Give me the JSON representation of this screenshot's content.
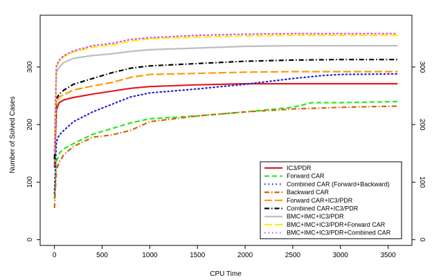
{
  "chart_data": {
    "type": "line",
    "title": "",
    "xlabel": "CPU Time",
    "ylabel": "Number of Solved Cases",
    "xlim": [
      -150,
      3750
    ],
    "ylim": [
      -10,
      390
    ],
    "xticks": [
      0,
      500,
      1000,
      1500,
      2000,
      2500,
      3000,
      3500
    ],
    "yticks": [
      0,
      100,
      200,
      300
    ],
    "right_axis": true,
    "grid": false,
    "legend_position": "bottom-right",
    "series": [
      {
        "name": "IC3/PDR",
        "color": "#e41a1c",
        "style": "solid",
        "x": [
          0,
          20,
          50,
          100,
          200,
          400,
          600,
          800,
          1000,
          1500,
          2000,
          2500,
          3000,
          3600
        ],
        "y": [
          125,
          225,
          238,
          243,
          247,
          253,
          258,
          263,
          266,
          269,
          271,
          271,
          271,
          271
        ]
      },
      {
        "name": "Forward CAR",
        "color": "#1aee1a",
        "style": "dashed",
        "x": [
          0,
          20,
          50,
          100,
          200,
          400,
          600,
          800,
          1000,
          1500,
          2000,
          2500,
          2700,
          3000,
          3600
        ],
        "y": [
          70,
          135,
          150,
          158,
          167,
          183,
          193,
          203,
          210,
          215,
          222,
          230,
          238,
          238,
          240
        ]
      },
      {
        "name": "Combined CAR (Forward+Backward)",
        "color": "#1f1fd6",
        "style": "dotted",
        "x": [
          0,
          20,
          50,
          100,
          200,
          400,
          600,
          800,
          1000,
          1500,
          2000,
          2500,
          2800,
          3000,
          3600
        ],
        "y": [
          80,
          170,
          182,
          190,
          205,
          222,
          235,
          248,
          255,
          262,
          270,
          280,
          285,
          287,
          288
        ]
      },
      {
        "name": "Backward CAR",
        "color": "#d95f02",
        "style": "dashdot",
        "x": [
          0,
          20,
          50,
          100,
          200,
          400,
          600,
          800,
          1000,
          1500,
          2000,
          2500,
          3000,
          3600
        ],
        "y": [
          55,
          120,
          135,
          148,
          162,
          178,
          182,
          190,
          205,
          215,
          222,
          227,
          230,
          232
        ]
      },
      {
        "name": "Forward CAR+IC3/PDR",
        "color": "#ff9900",
        "style": "longdash",
        "x": [
          0,
          20,
          50,
          100,
          200,
          400,
          600,
          800,
          1000,
          1500,
          2000,
          2500,
          3000,
          3600
        ],
        "y": [
          135,
          235,
          248,
          252,
          260,
          267,
          273,
          282,
          287,
          289,
          291,
          292,
          292,
          292
        ]
      },
      {
        "name": "Combined CAR+IC3/PDR",
        "color": "#000000",
        "style": "dashdot",
        "x": [
          0,
          20,
          50,
          100,
          200,
          400,
          600,
          800,
          1000,
          1500,
          2000,
          2500,
          3000,
          3600
        ],
        "y": [
          140,
          245,
          253,
          260,
          270,
          280,
          290,
          298,
          302,
          306,
          310,
          312,
          313,
          313
        ]
      },
      {
        "name": "BMC+IMC+IC3/PDR",
        "color": "#bdbdbd",
        "style": "solid",
        "x": [
          0,
          20,
          50,
          100,
          200,
          400,
          600,
          800,
          1000,
          1500,
          2000,
          2500,
          3000,
          3600
        ],
        "y": [
          150,
          290,
          300,
          308,
          315,
          320,
          323,
          327,
          330,
          333,
          336,
          337,
          337,
          337
        ]
      },
      {
        "name": "BMC+IMC+IC3/PDR+Forward CAR",
        "color": "#ffee00",
        "style": "longdash",
        "x": [
          0,
          20,
          50,
          100,
          200,
          400,
          600,
          800,
          1000,
          1500,
          2000,
          2500,
          3000,
          3600
        ],
        "y": [
          155,
          300,
          310,
          318,
          326,
          334,
          338,
          345,
          349,
          352,
          354,
          355,
          355,
          355
        ]
      },
      {
        "name": "BMC+IMC+IC3/PDR+Combined CAR",
        "color": "#e052e0",
        "style": "dotted",
        "x": [
          0,
          20,
          50,
          100,
          200,
          400,
          600,
          800,
          1000,
          1500,
          2000,
          2500,
          3000,
          3600
        ],
        "y": [
          155,
          302,
          312,
          320,
          328,
          337,
          341,
          348,
          351,
          355,
          357,
          358,
          358,
          358
        ]
      }
    ]
  }
}
